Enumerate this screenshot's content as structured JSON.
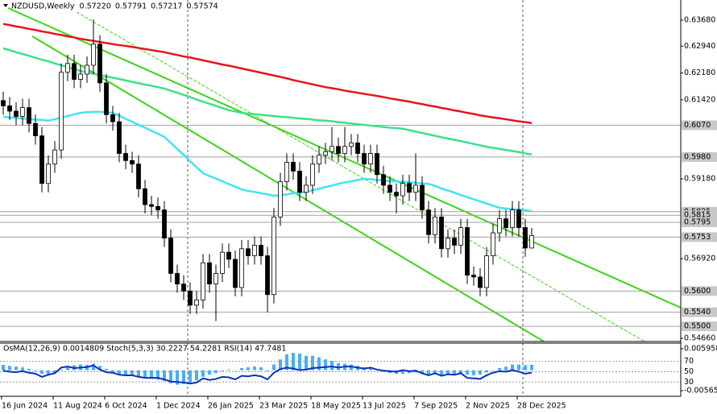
{
  "chart_data": [
    {
      "type": "candlestick",
      "symbol": "NZDUSD,Weekly",
      "header_values": [
        "0.57220",
        "0.57791",
        "0.57217",
        "0.57574"
      ],
      "ylim": [
        0.5457,
        0.6425
      ],
      "yticks": [
        {
          "value": 0.6368,
          "label": "0.63680"
        },
        {
          "value": 0.6294,
          "label": "0.62940"
        },
        {
          "value": 0.6218,
          "label": "0.62180"
        },
        {
          "value": 0.6142,
          "label": "0.61420"
        },
        {
          "value": 0.5918,
          "label": "0.59180"
        },
        {
          "value": 0.5692,
          "label": "0.56920"
        },
        {
          "value": 0.5466,
          "label": "0.54660"
        }
      ],
      "levels": [
        {
          "value": 0.607,
          "label": "0.6070"
        },
        {
          "value": 0.598,
          "label": "0.5980"
        },
        {
          "value": 0.5825,
          "label": "0.5825"
        },
        {
          "value": 0.5815,
          "label": "0.5815"
        },
        {
          "value": 0.5795,
          "label": "0.5795"
        },
        {
          "value": 0.5753,
          "label": "0.5753"
        },
        {
          "value": 0.56,
          "label": "0.5600"
        },
        {
          "value": 0.554,
          "label": "0.5540"
        },
        {
          "value": 0.55,
          "label": "0.5500"
        }
      ],
      "x_labels": [
        "16 Jun 2024",
        "11 Aug 2024",
        "6 Oct 2024",
        "1 Dec 2024",
        "26 Jan 2025",
        "23 Mar 2025",
        "18 May 2025",
        "13 Jul 2025",
        "7 Sep 2025",
        "2 Nov 2025",
        "28 Dec 2025"
      ],
      "candles": [
        [
          0.614,
          0.6165,
          0.61,
          0.6125
        ],
        [
          0.6125,
          0.615,
          0.6085,
          0.611
        ],
        [
          0.611,
          0.6135,
          0.607,
          0.6095
        ],
        [
          0.6095,
          0.6145,
          0.607,
          0.612
        ],
        [
          0.612,
          0.6145,
          0.605,
          0.6075
        ],
        [
          0.6075,
          0.61,
          0.6015,
          0.604
        ],
        [
          0.604,
          0.6065,
          0.588,
          0.5905
        ],
        [
          0.5905,
          0.5985,
          0.588,
          0.596
        ],
        [
          0.596,
          0.6025,
          0.5935,
          0.6
        ],
        [
          0.6,
          0.6245,
          0.5975,
          0.622
        ],
        [
          0.622,
          0.627,
          0.6195,
          0.6245
        ],
        [
          0.6245,
          0.627,
          0.6175,
          0.62
        ],
        [
          0.62,
          0.624,
          0.6175,
          0.6215
        ],
        [
          0.6215,
          0.6265,
          0.619,
          0.624
        ],
        [
          0.624,
          0.637,
          0.6215,
          0.63
        ],
        [
          0.63,
          0.6325,
          0.6165,
          0.619
        ],
        [
          0.619,
          0.6215,
          0.6075,
          0.61
        ],
        [
          0.61,
          0.6125,
          0.6055,
          0.608
        ],
        [
          0.608,
          0.6105,
          0.5965,
          0.599
        ],
        [
          0.599,
          0.6015,
          0.5945,
          0.597
        ],
        [
          0.597,
          0.5995,
          0.5935,
          0.596
        ],
        [
          0.596,
          0.5985,
          0.5865,
          0.589
        ],
        [
          0.589,
          0.5915,
          0.582,
          0.5845
        ],
        [
          0.5845,
          0.587,
          0.5815,
          0.584
        ],
        [
          0.584,
          0.5865,
          0.5805,
          0.583
        ],
        [
          0.583,
          0.5855,
          0.5725,
          0.575
        ],
        [
          0.575,
          0.5775,
          0.5625,
          0.565
        ],
        [
          0.565,
          0.5675,
          0.5595,
          0.562
        ],
        [
          0.562,
          0.5645,
          0.5575,
          0.56
        ],
        [
          0.56,
          0.5625,
          0.5535,
          0.556
        ],
        [
          0.556,
          0.56,
          0.5535,
          0.5575
        ],
        [
          0.5575,
          0.5705,
          0.555,
          0.568
        ],
        [
          0.568,
          0.5705,
          0.5595,
          0.562
        ],
        [
          0.562,
          0.5675,
          0.5515,
          0.565
        ],
        [
          0.565,
          0.5735,
          0.5625,
          0.571
        ],
        [
          0.571,
          0.5735,
          0.5665,
          0.569
        ],
        [
          0.569,
          0.5715,
          0.5585,
          0.561
        ],
        [
          0.561,
          0.5745,
          0.5585,
          0.572
        ],
        [
          0.572,
          0.5745,
          0.5675,
          0.57
        ],
        [
          0.57,
          0.5755,
          0.5675,
          0.573
        ],
        [
          0.573,
          0.5755,
          0.5675,
          0.57
        ],
        [
          0.57,
          0.5725,
          0.554,
          0.559
        ],
        [
          0.559,
          0.5835,
          0.5565,
          0.581
        ],
        [
          0.581,
          0.5935,
          0.5785,
          0.591
        ],
        [
          0.591,
          0.599,
          0.5885,
          0.5965
        ],
        [
          0.5965,
          0.599,
          0.5915,
          0.594
        ],
        [
          0.594,
          0.5965,
          0.5855,
          0.588
        ],
        [
          0.588,
          0.5925,
          0.5855,
          0.59
        ],
        [
          0.59,
          0.5985,
          0.5875,
          0.596
        ],
        [
          0.596,
          0.601,
          0.5935,
          0.5985
        ],
        [
          0.5985,
          0.602,
          0.596,
          0.5995
        ],
        [
          0.5995,
          0.6065,
          0.597,
          0.601
        ],
        [
          0.601,
          0.6035,
          0.5965,
          0.599
        ],
        [
          0.599,
          0.6065,
          0.5965,
          0.601
        ],
        [
          0.601,
          0.6045,
          0.5985,
          0.602
        ],
        [
          0.602,
          0.6045,
          0.5965,
          0.599
        ],
        [
          0.599,
          0.6015,
          0.5935,
          0.596
        ],
        [
          0.596,
          0.6015,
          0.5935,
          0.599
        ],
        [
          0.599,
          0.6015,
          0.5905,
          0.593
        ],
        [
          0.593,
          0.5955,
          0.5875,
          0.59
        ],
        [
          0.59,
          0.5925,
          0.5855,
          0.588
        ],
        [
          0.588,
          0.5905,
          0.582,
          0.587
        ],
        [
          0.587,
          0.593,
          0.5845,
          0.5905
        ],
        [
          0.5905,
          0.593,
          0.5855,
          0.588
        ],
        [
          0.588,
          0.599,
          0.5855,
          0.59
        ],
        [
          0.59,
          0.5925,
          0.5805,
          0.583
        ],
        [
          0.583,
          0.5855,
          0.5735,
          0.576
        ],
        [
          0.576,
          0.5835,
          0.5735,
          0.581
        ],
        [
          0.581,
          0.5835,
          0.5695,
          0.572
        ],
        [
          0.572,
          0.5775,
          0.5695,
          0.575
        ],
        [
          0.575,
          0.5775,
          0.5705,
          0.573
        ],
        [
          0.573,
          0.5805,
          0.5705,
          0.578
        ],
        [
          0.578,
          0.5805,
          0.562,
          0.5645
        ],
        [
          0.5645,
          0.567,
          0.5615,
          0.564
        ],
        [
          0.564,
          0.5665,
          0.5585,
          0.561
        ],
        [
          0.561,
          0.5725,
          0.5585,
          0.57
        ],
        [
          0.57,
          0.579,
          0.5675,
          0.5765
        ],
        [
          0.5765,
          0.583,
          0.574,
          0.5805
        ],
        [
          0.5805,
          0.583,
          0.5755,
          0.578
        ],
        [
          0.578,
          0.5855,
          0.5755,
          0.583
        ],
        [
          0.583,
          0.5855,
          0.5755,
          0.578
        ],
        [
          0.578,
          0.5805,
          0.5697,
          0.5722
        ],
        [
          0.5722,
          0.57791,
          0.57217,
          0.57574
        ]
      ],
      "series": [
        {
          "color": "#e8141e",
          "values": [
            0.6357,
            0.6354,
            0.635,
            0.6347,
            0.6343,
            0.634,
            0.6336,
            0.6333,
            0.6329,
            0.6326,
            0.6322,
            0.6319,
            0.6315,
            0.6312,
            0.6309,
            0.6306,
            0.6303,
            0.63,
            0.6297,
            0.6295,
            0.6292,
            0.6289,
            0.6286,
            0.6283,
            0.628,
            0.6277,
            0.6273,
            0.6269,
            0.6265,
            0.6262,
            0.6258,
            0.6254,
            0.625,
            0.6246,
            0.6242,
            0.6239,
            0.6235,
            0.6231,
            0.6227,
            0.6223,
            0.6219,
            0.6215,
            0.6211,
            0.6207,
            0.6203,
            0.6198,
            0.6194,
            0.619,
            0.6186,
            0.6182,
            0.6178,
            0.6175,
            0.6172,
            0.6168,
            0.6165,
            0.6162,
            0.6159,
            0.6156,
            0.6153,
            0.615,
            0.6146,
            0.6143,
            0.614,
            0.6137,
            0.6133,
            0.613,
            0.6126,
            0.6123,
            0.6119,
            0.6116,
            0.6112,
            0.6109,
            0.6105,
            0.6102,
            0.6098,
            0.6095,
            0.6092,
            0.609,
            0.6087,
            0.6084,
            0.6081,
            0.6079,
            0.6076
          ]
        },
        {
          "color": "#3ce08c",
          "values": [
            0.6288,
            0.6283,
            0.6277,
            0.6272,
            0.6267,
            0.6261,
            0.6256,
            0.6251,
            0.6245,
            0.624,
            0.6235,
            0.6229,
            0.6224,
            0.622,
            0.6216,
            0.6212,
            0.6208,
            0.6205,
            0.6201,
            0.6197,
            0.6193,
            0.6189,
            0.6185,
            0.6182,
            0.6178,
            0.6174,
            0.6168,
            0.6162,
            0.6156,
            0.615,
            0.6143,
            0.6137,
            0.6131,
            0.6125,
            0.6119,
            0.6113,
            0.6109,
            0.6105,
            0.6103,
            0.6101,
            0.61,
            0.6098,
            0.6096,
            0.6094,
            0.6093,
            0.6091,
            0.6089,
            0.6088,
            0.6086,
            0.6084,
            0.6083,
            0.6081,
            0.6079,
            0.6077,
            0.6075,
            0.6073,
            0.6071,
            0.6069,
            0.6067,
            0.6065,
            0.6063,
            0.6062,
            0.606,
            0.6056,
            0.6052,
            0.6048,
            0.6044,
            0.604,
            0.6036,
            0.6032,
            0.6029,
            0.6025,
            0.6021,
            0.6017,
            0.6013,
            0.6009,
            0.6006,
            0.6003,
            0.6,
            0.5997,
            0.5994,
            0.599,
            0.5987
          ]
        },
        {
          "color": "#40e4f4",
          "values": [
            0.6094,
            0.6092,
            0.6091,
            0.6089,
            0.6088,
            0.6086,
            0.6085,
            0.6083,
            0.6087,
            0.6092,
            0.6096,
            0.6101,
            0.6105,
            0.6107,
            0.6108,
            0.6108,
            0.6107,
            0.6105,
            0.6097,
            0.6088,
            0.608,
            0.6071,
            0.6063,
            0.6054,
            0.6046,
            0.6037,
            0.602,
            0.6003,
            0.5986,
            0.5968,
            0.5951,
            0.5934,
            0.5926,
            0.5919,
            0.5911,
            0.5903,
            0.5896,
            0.5888,
            0.5884,
            0.5881,
            0.5877,
            0.5874,
            0.587,
            0.5872,
            0.5874,
            0.5877,
            0.5879,
            0.5881,
            0.5886,
            0.589,
            0.5895,
            0.5899,
            0.5904,
            0.5908,
            0.5911,
            0.5915,
            0.5918,
            0.5917,
            0.5915,
            0.5914,
            0.5912,
            0.5911,
            0.591,
            0.5908,
            0.5907,
            0.5905,
            0.5904,
            0.5898,
            0.5891,
            0.5885,
            0.5879,
            0.5872,
            0.5866,
            0.586,
            0.5854,
            0.5848,
            0.5842,
            0.5836,
            0.5834,
            0.5832,
            0.5831,
            0.5829,
            0.5827
          ]
        }
      ]
    },
    {
      "type": "oscillator",
      "label": "OsMA(12,26,9) 0.0014809 Stoch(5,3,3) 30.2227 54.2281 RSI(14) 47.7481",
      "ylim": [
        -0.0072,
        0.0075
      ],
      "yticks": [
        0.005958,
        -0.00565
      ],
      "rsi_ylim": [
        2.3,
        105.4
      ],
      "rsi_ticks": [
        70,
        50,
        30
      ],
      "hist_color": "#49aef5",
      "values": [
        0.0015,
        0.0012,
        0.001,
        0.0008,
        0.0004,
        -0.0002,
        -0.001,
        -0.0012,
        -0.0008,
        0.0002,
        0.001,
        0.0014,
        0.0016,
        0.0015,
        0.0018,
        0.0012,
        0.0004,
        -0.0004,
        -0.001,
        -0.0014,
        -0.0016,
        -0.0018,
        -0.0022,
        -0.0024,
        -0.0026,
        -0.003,
        -0.0036,
        -0.004,
        -0.0038,
        -0.0034,
        -0.0028,
        -0.0018,
        -0.0012,
        -0.0008,
        -0.0002,
        0.0002,
        0,
        0.0006,
        0.0008,
        0.001,
        0.0008,
        -0.0002,
        0.0016,
        0.003,
        0.0044,
        0.0048,
        0.0046,
        0.004,
        0.004,
        0.0036,
        0.003,
        0.0026,
        0.002,
        0.0018,
        0.0016,
        0.0012,
        0.0008,
        0.0006,
        0.0002,
        -0.0004,
        -0.0008,
        -0.001,
        -0.001,
        -0.0008,
        -0.0006,
        -0.001,
        -0.0014,
        -0.0012,
        -0.0014,
        -0.0012,
        -0.001,
        -0.0008,
        -0.0012,
        -0.0014,
        -0.0012,
        -0.0006,
        0,
        0.0006,
        0.001,
        0.0016,
        0.0016,
        0.0014,
        0.0015
      ],
      "rsi_color": "#1030b8",
      "rsi": [
        52,
        50,
        49,
        51,
        48,
        46,
        40,
        44,
        47,
        58,
        60,
        57,
        58,
        59,
        62,
        54,
        49,
        48,
        44,
        43,
        43,
        40,
        38,
        38,
        38,
        35,
        31,
        30,
        29,
        27,
        29,
        37,
        34,
        36,
        40,
        39,
        35,
        42,
        41,
        43,
        41,
        35,
        48,
        55,
        58,
        56,
        53,
        54,
        57,
        58,
        59,
        60,
        58,
        60,
        60,
        58,
        56,
        58,
        54,
        52,
        51,
        50,
        53,
        51,
        52,
        47,
        43,
        47,
        42,
        45,
        44,
        47,
        38,
        37,
        36,
        43,
        48,
        51,
        50,
        53,
        50,
        46,
        48
      ]
    }
  ]
}
